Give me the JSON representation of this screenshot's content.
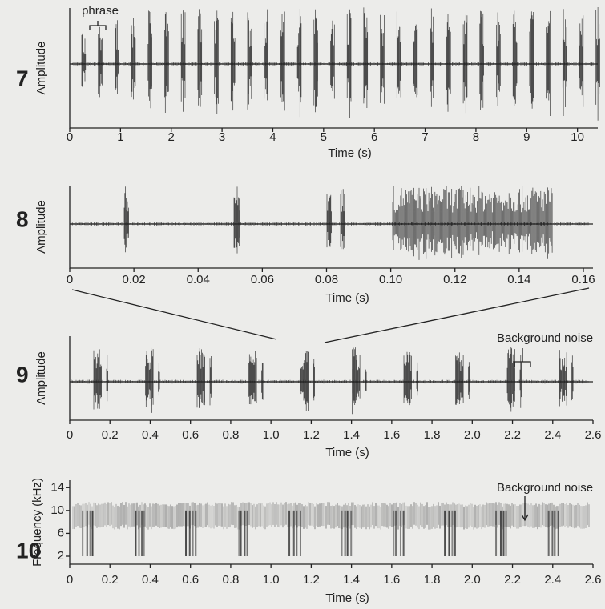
{
  "chart_data": [
    {
      "type": "waveform",
      "panel_label": "7",
      "ylabel": "Amplitude",
      "xlabel": "Time (s)",
      "annotation": "phrase",
      "xlim": [
        0,
        10.4
      ],
      "xticks": [
        0,
        1,
        2,
        3,
        4,
        5,
        6,
        7,
        8,
        9,
        10
      ]
    },
    {
      "type": "waveform",
      "panel_label": "8",
      "ylabel": "Amplitude",
      "xlabel": "Time (s)",
      "xlim": [
        0,
        0.163
      ],
      "xticks": [
        0,
        0.02,
        0.04,
        0.06,
        0.08,
        {
          "value": 0.1,
          "label": "0.10"
        },
        0.12,
        0.14,
        0.16
      ]
    },
    {
      "type": "waveform",
      "panel_label": "9",
      "ylabel": "Amplitude",
      "xlabel": "Time (s)",
      "annotation": "Background noise",
      "xlim": [
        0,
        2.6
      ],
      "xticks": [
        0,
        0.2,
        0.4,
        0.6,
        0.8,
        {
          "value": 1,
          "label": "1.0"
        },
        1.2,
        1.4,
        1.6,
        1.8,
        {
          "value": 2,
          "label": "2.0"
        },
        2.2,
        2.4,
        2.6
      ]
    },
    {
      "type": "spectrogram",
      "panel_label": "10",
      "ylabel": "Frequency (kHz)",
      "xlabel": "Time (s)",
      "annotation": "Background noise",
      "xlim": [
        0,
        2.6
      ],
      "xticks": [
        0,
        0.2,
        0.4,
        0.6,
        0.8,
        {
          "value": 1,
          "label": "1.0"
        },
        1.2,
        1.4,
        1.6,
        1.8,
        {
          "value": 2,
          "label": "2.0"
        },
        2.2,
        2.4,
        2.6
      ],
      "ylim": [
        0.6,
        15.3
      ],
      "yticks": [
        2,
        6,
        10,
        14
      ]
    }
  ]
}
